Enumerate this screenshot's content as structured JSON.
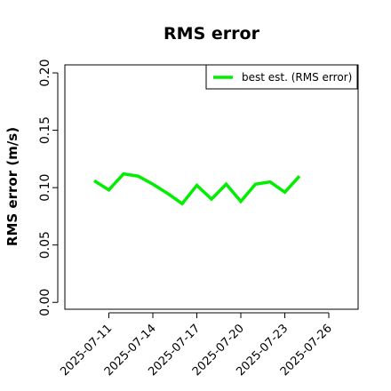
{
  "chart_data": {
    "type": "line",
    "title": "RMS error",
    "y_label": "RMS error (m/s)",
    "x": [
      "2025-07-10",
      "2025-07-11",
      "2025-07-12",
      "2025-07-13",
      "2025-07-14",
      "2025-07-15",
      "2025-07-16",
      "2025-07-17",
      "2025-07-18",
      "2025-07-19",
      "2025-07-20",
      "2025-07-21",
      "2025-07-22",
      "2025-07-23",
      "2025-07-24"
    ],
    "series": [
      {
        "name": "best est. (RMS error)",
        "color": "#00ee00",
        "values": [
          0.106,
          0.098,
          0.112,
          0.11,
          0.103,
          0.095,
          0.086,
          0.102,
          0.09,
          0.103,
          0.088,
          0.103,
          0.105,
          0.096,
          0.11
        ]
      }
    ],
    "xlim": [
      "2025-07-08",
      "2025-07-28"
    ],
    "xticks": [
      "2025-07-11",
      "2025-07-14",
      "2025-07-17",
      "2025-07-20",
      "2025-07-23",
      "2025-07-26"
    ],
    "xtick_label_colors": [
      "#000000",
      "#000000",
      "#228b22",
      "#000000",
      "#000000",
      "#000000"
    ],
    "ylim": [
      -0.006,
      0.207
    ],
    "yticks": [
      {
        "value": 0,
        "label": "0.00"
      },
      {
        "value": 0.05,
        "label": "0.05"
      },
      {
        "value": 0.1,
        "label": "0.10"
      },
      {
        "value": 0.15,
        "label": "0.15"
      },
      {
        "value": 0.2,
        "label": "0.20"
      }
    ],
    "legend": "topright"
  }
}
